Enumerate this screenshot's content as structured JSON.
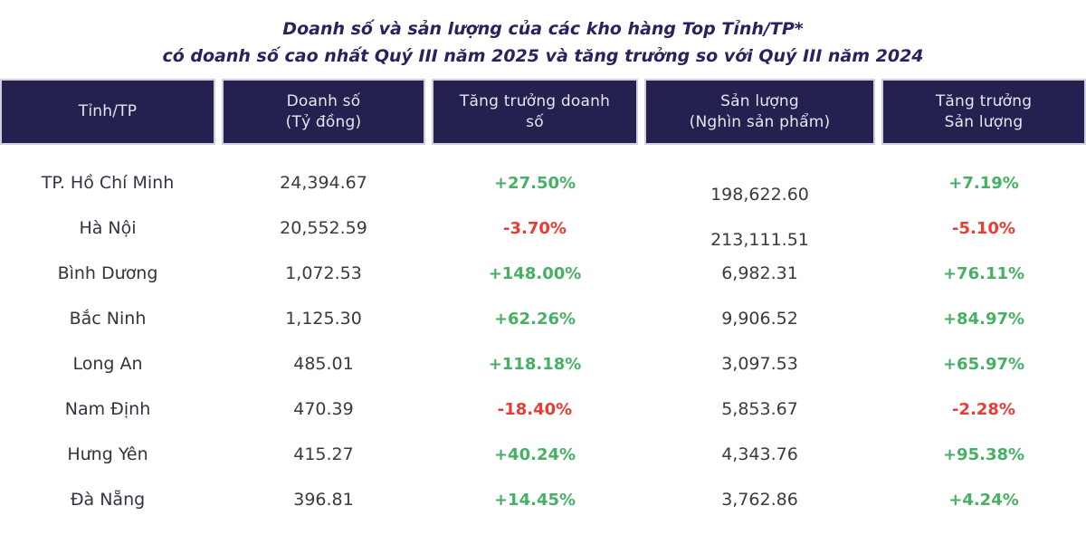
{
  "meta": {
    "title_line1": "Doanh số và sản lượng của các kho hàng Top Tỉnh/TP*",
    "title_line2": "có doanh số cao nhất Quý III năm 2025 và tăng trưởng so với Quý III năm 2024"
  },
  "colors": {
    "positive": "#45b163",
    "negative": "#ec3b32",
    "header_bg": "#242050",
    "header_text": "#e6e6f0",
    "title_text": "#262360",
    "body_text": "#3a3a42"
  },
  "table": {
    "columns": [
      {
        "line1": "Tỉnh/TP",
        "line2": ""
      },
      {
        "line1": "Doanh số",
        "line2": "(Tỷ đồng)"
      },
      {
        "line1": "Tăng trưởng doanh",
        "line2": "số"
      },
      {
        "line1": "Sản lượng",
        "line2": "(Nghìn sản phẩm)"
      },
      {
        "line1": "Tăng trưởng",
        "line2": "Sản lượng"
      }
    ],
    "rows": [
      {
        "province": "TP. Hồ Chí Minh",
        "revenue": "24,394.67",
        "revenue_growth": "+27.50%",
        "volume": "198,622.60",
        "volume_growth": "+7.19%"
      },
      {
        "province": "Hà Nội",
        "revenue": "20,552.59",
        "revenue_growth": "-3.70%",
        "volume": "213,111.51",
        "volume_growth": "-5.10%"
      },
      {
        "province": "Bình Dương",
        "revenue": "1,072.53",
        "revenue_growth": "+148.00%",
        "volume": "6,982.31",
        "volume_growth": "+76.11%"
      },
      {
        "province": "Bắc Ninh",
        "revenue": "1,125.30",
        "revenue_growth": "+62.26%",
        "volume": "9,906.52",
        "volume_growth": "+84.97%"
      },
      {
        "province": "Long An",
        "revenue": "485.01",
        "revenue_growth": "+118.18%",
        "volume": "3,097.53",
        "volume_growth": "+65.97%"
      },
      {
        "province": "Nam Định",
        "revenue": "470.39",
        "revenue_growth": "-18.40%",
        "volume": "5,853.67",
        "volume_growth": "-2.28%"
      },
      {
        "province": "Hưng Yên",
        "revenue": "415.27",
        "revenue_growth": "+40.24%",
        "volume": "4,343.76",
        "volume_growth": "+95.38%"
      },
      {
        "province": "Đà Nẵng",
        "revenue": "396.81",
        "revenue_growth": "+14.45%",
        "volume": "3,762.86",
        "volume_growth": "+4.24%"
      }
    ]
  },
  "chart_data": {
    "type": "table",
    "title": "Doanh số và sản lượng của các kho hàng Top Tỉnh/TP* có doanh số cao nhất Quý III năm 2025 và tăng trưởng so với Quý III năm 2024",
    "columns": [
      "Tỉnh/TP",
      "Doanh số (Tỷ đồng)",
      "Tăng trưởng doanh số",
      "Sản lượng (Nghìn sản phẩm)",
      "Tăng trưởng Sản lượng"
    ],
    "rows": [
      [
        "TP. Hồ Chí Minh",
        24394.67,
        "+27.50%",
        198622.6,
        "+7.19%"
      ],
      [
        "Hà Nội",
        20552.59,
        "-3.70%",
        213111.51,
        "-5.10%"
      ],
      [
        "Bình Dương",
        1072.53,
        "+148.00%",
        6982.31,
        "+76.11%"
      ],
      [
        "Bắc Ninh",
        1125.3,
        "+62.26%",
        9906.52,
        "+84.97%"
      ],
      [
        "Long An",
        485.01,
        "+118.18%",
        3097.53,
        "+65.97%"
      ],
      [
        "Nam Định",
        470.39,
        "-18.40%",
        5853.67,
        "-2.28%"
      ],
      [
        "Hưng Yên",
        415.27,
        "+40.24%",
        4343.76,
        "+95.38%"
      ],
      [
        "Đà Nẵng",
        396.81,
        "+14.45%",
        3762.86,
        "+4.24%"
      ]
    ]
  }
}
